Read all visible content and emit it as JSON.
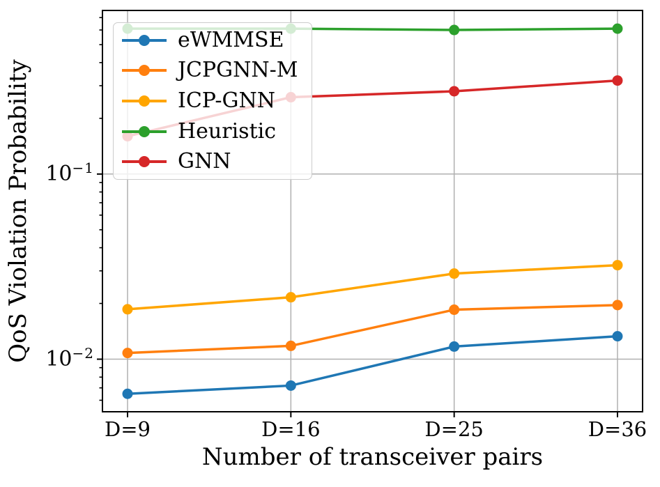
{
  "figure": {
    "xlabel": "Number of transceiver pairs",
    "ylabel": "QoS Violation Probability"
  },
  "chart_data": {
    "type": "line",
    "title": "",
    "xlabel": "Number of transceiver pairs",
    "ylabel": "QoS Violation Probability",
    "yscale": "log",
    "ylim": [
      0.0052,
      0.765
    ],
    "grid": true,
    "grid_color": "#b0b0b0",
    "legend_position": "upper left",
    "categories": [
      "D=9",
      "D=16",
      "D=25",
      "D=36"
    ],
    "y_ticks": [
      {
        "value": 0.1,
        "base": "10",
        "exp": "−1"
      },
      {
        "value": 0.01,
        "base": "10",
        "exp": "−2"
      }
    ],
    "series": [
      {
        "name": "eWMMSE",
        "color": "#1f77b4",
        "marker": "circle",
        "values": [
          0.0065,
          0.0072,
          0.0117,
          0.0133
        ]
      },
      {
        "name": "JCPGNN-M",
        "color": "#ff7f0e",
        "marker": "circle",
        "values": [
          0.0108,
          0.0118,
          0.0185,
          0.0196
        ]
      },
      {
        "name": "ICP-GNN",
        "color": "#ffa500",
        "marker": "circle",
        "values": [
          0.0186,
          0.0216,
          0.029,
          0.0322
        ]
      },
      {
        "name": "Heuristic",
        "color": "#2ca02c",
        "marker": "circle",
        "values": [
          0.61,
          0.61,
          0.6,
          0.61
        ]
      },
      {
        "name": "GNN",
        "color": "#d62728",
        "marker": "circle",
        "values": [
          0.16,
          0.26,
          0.28,
          0.32
        ]
      }
    ]
  }
}
